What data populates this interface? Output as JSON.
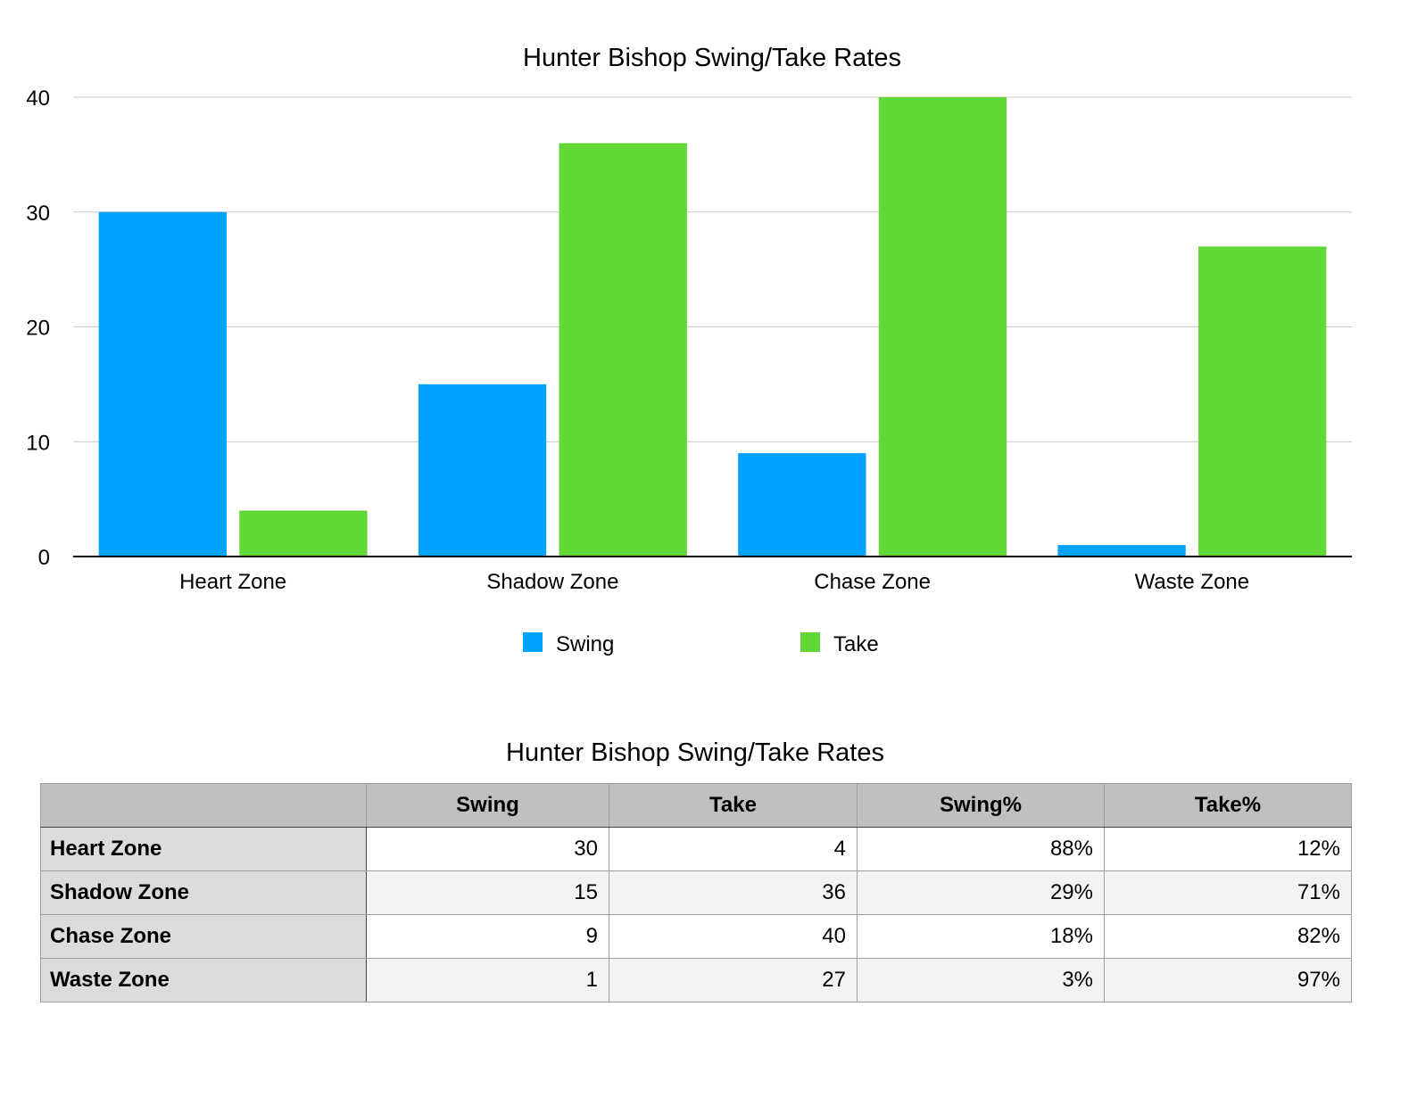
{
  "chart_data": {
    "type": "bar",
    "title": "Hunter Bishop Swing/Take Rates",
    "categories": [
      "Heart Zone",
      "Shadow Zone",
      "Chase Zone",
      "Waste Zone"
    ],
    "series": [
      {
        "name": "Swing",
        "values": [
          30,
          15,
          9,
          1
        ],
        "color": "#00a2ff"
      },
      {
        "name": "Take",
        "values": [
          4,
          36,
          40,
          27
        ],
        "color": "#61d836"
      }
    ],
    "ylim": [
      0,
      40
    ],
    "yticks": [
      0,
      10,
      20,
      30,
      40
    ],
    "xlabel": "",
    "ylabel": "",
    "grid": true,
    "legend": "bottom"
  },
  "table": {
    "title": "Hunter Bishop Swing/Take Rates",
    "headers": [
      "",
      "Swing",
      "Take",
      "Swing%",
      "Take%"
    ],
    "rows": [
      {
        "label": "Heart Zone",
        "cells": [
          "30",
          "4",
          "88%",
          "12%"
        ]
      },
      {
        "label": "Shadow Zone",
        "cells": [
          "15",
          "36",
          "29%",
          "71%"
        ]
      },
      {
        "label": "Chase Zone",
        "cells": [
          "9",
          "40",
          "18%",
          "82%"
        ]
      },
      {
        "label": "Waste Zone",
        "cells": [
          "1",
          "27",
          "3%",
          "97%"
        ]
      }
    ]
  }
}
